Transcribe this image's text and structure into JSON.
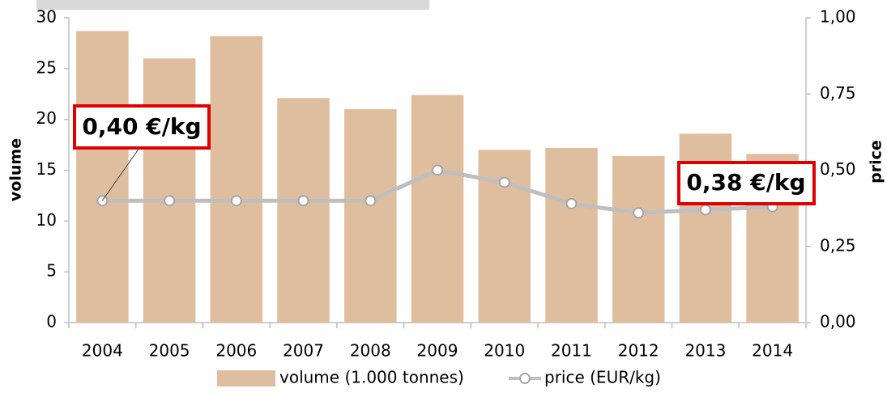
{
  "chart_data": {
    "type": "bar",
    "categories": [
      "2004",
      "2005",
      "2006",
      "2007",
      "2008",
      "2009",
      "2010",
      "2011",
      "2012",
      "2013",
      "2014"
    ],
    "series": [
      {
        "name": "volume (1.000 tonnes)",
        "type": "bar",
        "color": "#dfbe9f",
        "values": [
          28.7,
          26.0,
          28.2,
          22.1,
          21.0,
          22.4,
          17.0,
          17.2,
          16.4,
          18.6,
          16.6
        ]
      },
      {
        "name": "price (EUR/kg)",
        "type": "line",
        "axis": "y2",
        "color": "#bfbfbf",
        "values": [
          0.4,
          0.4,
          0.4,
          0.4,
          0.4,
          0.5,
          0.46,
          0.39,
          0.36,
          0.37,
          0.38
        ]
      }
    ],
    "ylabel": "volume",
    "y2label": "price",
    "ylim": [
      0,
      30
    ],
    "yticks": [
      0,
      5,
      10,
      15,
      20,
      25,
      30
    ],
    "y2lim": [
      0,
      1
    ],
    "y2ticks": [
      {
        "value": 0,
        "label": "0,00"
      },
      {
        "value": 0.25,
        "label": "0,25"
      },
      {
        "value": 0.5,
        "label": "0,50"
      },
      {
        "value": 0.75,
        "label": "0,75"
      },
      {
        "value": 1,
        "label": "1,00"
      }
    ],
    "annotations": [
      "0,40  €/kg",
      "0,38  €/kg"
    ],
    "legend": "bottom"
  }
}
